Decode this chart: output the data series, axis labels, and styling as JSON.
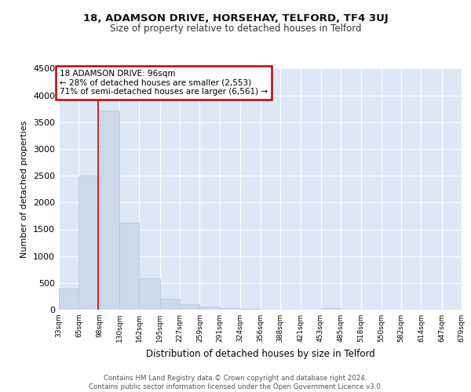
{
  "title": "18, ADAMSON DRIVE, HORSEHAY, TELFORD, TF4 3UJ",
  "subtitle": "Size of property relative to detached houses in Telford",
  "xlabel": "Distribution of detached houses by size in Telford",
  "ylabel": "Number of detached properties",
  "bar_color": "#ccd9ea",
  "bar_edge_color": "#b0c4de",
  "background_color": "#dce8f5",
  "grid_color": "#ffffff",
  "annotation_line1": "18 ADAMSON DRIVE: 96sqm",
  "annotation_line2": "← 28% of detached houses are smaller (2,553)",
  "annotation_line3": "71% of semi-detached houses are larger (6,561) →",
  "annotation_box_color": "#ffffff",
  "annotation_box_edge": "#cc0000",
  "property_line_color": "#cc0000",
  "footer_text": "Contains HM Land Registry data © Crown copyright and database right 2024.\nContains public sector information licensed under the Open Government Licence v3.0.",
  "bins": [
    33,
    65,
    98,
    130,
    162,
    195,
    227,
    259,
    291,
    324,
    356,
    388,
    421,
    453,
    485,
    518,
    550,
    582,
    614,
    647,
    679
  ],
  "counts": [
    390,
    2500,
    3720,
    1630,
    590,
    200,
    100,
    55,
    30,
    10,
    5,
    3,
    0,
    25,
    0,
    0,
    0,
    0,
    0,
    0,
    0
  ],
  "property_size": 96,
  "ylim": [
    0,
    4500
  ],
  "yticks": [
    0,
    500,
    1000,
    1500,
    2000,
    2500,
    3000,
    3500,
    4000,
    4500
  ]
}
